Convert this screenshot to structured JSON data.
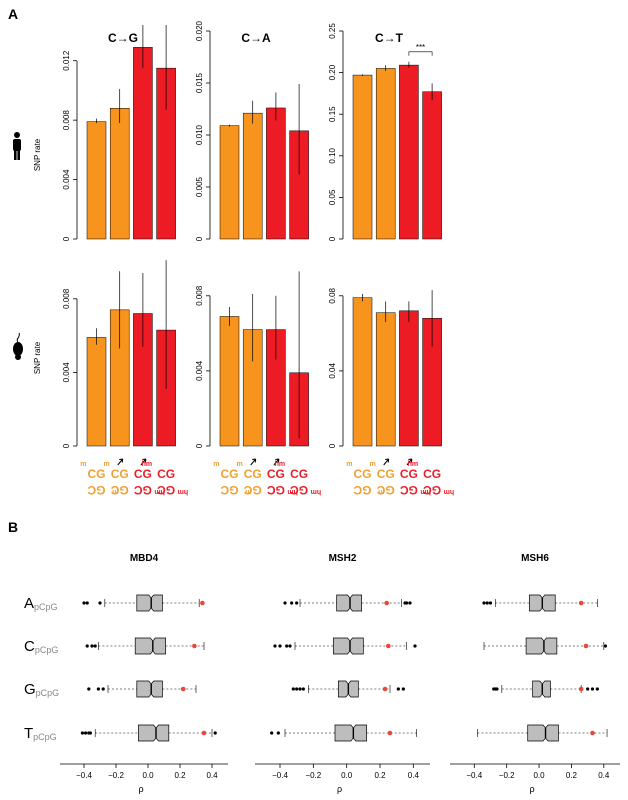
{
  "panel_labels": {
    "a": "A",
    "b": "B"
  },
  "colors": {
    "orange": "#F7941D",
    "red": "#ED1C24",
    "box": "#BDBDBD",
    "outlier": "#000000",
    "observed": "#E8473A"
  },
  "species": [
    {
      "ylabel": "SNP rate",
      "icon": "human-icon"
    },
    {
      "ylabel": "SNP rate",
      "icon": "mouse-icon"
    }
  ],
  "chart_data": [
    {
      "type": "bar",
      "title": "C→G",
      "row": "human",
      "ylim": [
        0,
        0.014
      ],
      "yticks": [
        "0",
        "0.004",
        "0.008",
        "0.012"
      ],
      "ytick_values": [
        0,
        0.004,
        0.008,
        0.012
      ],
      "values": [
        0.0079,
        0.0088,
        0.0129,
        0.0115
      ],
      "err_low": [
        0.0078,
        0.0078,
        0.0115,
        0.0087
      ],
      "err_high": [
        0.0081,
        0.0101,
        0.0144,
        0.0144
      ],
      "colors": [
        "#F7941D",
        "#F7941D",
        "#ED1C24",
        "#ED1C24"
      ]
    },
    {
      "type": "bar",
      "title": "C→A",
      "row": "human",
      "ylim": [
        0,
        0.02
      ],
      "yticks": [
        "0",
        "0.005",
        "0.010",
        "0.015",
        "0.020"
      ],
      "ytick_values": [
        0,
        0.005,
        0.01,
        0.015,
        0.02
      ],
      "values": [
        0.0109,
        0.0121,
        0.0126,
        0.0104
      ],
      "err_low": [
        0.0108,
        0.0111,
        0.0114,
        0.0062
      ],
      "err_high": [
        0.011,
        0.0133,
        0.0141,
        0.0149
      ],
      "colors": [
        "#F7941D",
        "#F7941D",
        "#ED1C24",
        "#ED1C24"
      ]
    },
    {
      "type": "bar",
      "title": "C→T",
      "row": "human",
      "ylim": [
        0,
        0.25
      ],
      "yticks": [
        "0",
        "0.05",
        "0.10",
        "0.15",
        "0.20",
        "0.25"
      ],
      "ytick_values": [
        0,
        0.05,
        0.1,
        0.15,
        0.2,
        0.25
      ],
      "values": [
        0.197,
        0.205,
        0.209,
        0.177
      ],
      "err_low": [
        0.196,
        0.202,
        0.206,
        0.167
      ],
      "err_high": [
        0.198,
        0.209,
        0.213,
        0.187
      ],
      "colors": [
        "#F7941D",
        "#F7941D",
        "#ED1C24",
        "#ED1C24"
      ],
      "annotation": "***"
    },
    {
      "type": "bar",
      "row": "mouse",
      "ylim": [
        0,
        0.01
      ],
      "yticks": [
        "0",
        "0.004",
        "0.008"
      ],
      "ytick_values": [
        0,
        0.004,
        0.008
      ],
      "values": [
        0.0059,
        0.0074,
        0.0072,
        0.0063
      ],
      "err_low": [
        0.0055,
        0.0053,
        0.0054,
        0.0031
      ],
      "err_high": [
        0.0064,
        0.0095,
        0.0094,
        0.0101
      ],
      "colors": [
        "#F7941D",
        "#F7941D",
        "#ED1C24",
        "#ED1C24"
      ]
    },
    {
      "type": "bar",
      "row": "mouse",
      "ylim": [
        0,
        0.0098
      ],
      "yticks": [
        "0",
        "0.004",
        "0.008"
      ],
      "ytick_values": [
        0,
        0.004,
        0.008
      ],
      "values": [
        0.0069,
        0.0062,
        0.0062,
        0.0039
      ],
      "err_low": [
        0.0064,
        0.0045,
        0.0046,
        0.0004
      ],
      "err_high": [
        0.0074,
        0.0081,
        0.008,
        0.0093
      ],
      "colors": [
        "#F7941D",
        "#F7941D",
        "#ED1C24",
        "#ED1C24"
      ]
    },
    {
      "type": "bar",
      "row": "mouse",
      "ylim": [
        0,
        0.098
      ],
      "yticks": [
        "0",
        "0.04",
        "0.08"
      ],
      "ytick_values": [
        0,
        0.04,
        0.08
      ],
      "values": [
        0.079,
        0.071,
        0.072,
        0.068
      ],
      "err_low": [
        0.077,
        0.066,
        0.066,
        0.053
      ],
      "err_high": [
        0.081,
        0.077,
        0.077,
        0.083
      ],
      "colors": [
        "#F7941D",
        "#F7941D",
        "#ED1C24",
        "#ED1C24"
      ]
    },
    {
      "type": "boxplot",
      "title": "MBD4",
      "xlabel": "ρ",
      "xlim": [
        -0.55,
        0.5
      ],
      "xticks": [
        "−0.4",
        "−0.2",
        "0.0",
        "0.2",
        "0.4"
      ],
      "xtick_values": [
        -0.4,
        -0.2,
        0.0,
        0.2,
        0.4
      ],
      "rows": [
        {
          "base": "A",
          "sub": "pCpG",
          "whisker": [
            -0.27,
            0.32
          ],
          "q1": -0.07,
          "median": 0.02,
          "q3": 0.09,
          "outliers": [
            -0.4,
            -0.38,
            -0.3
          ],
          "observed": 0.34
        },
        {
          "base": "C",
          "sub": "pCpG",
          "whisker": [
            -0.31,
            0.35
          ],
          "q1": -0.08,
          "median": 0.03,
          "q3": 0.11,
          "outliers": [
            -0.38,
            -0.35,
            -0.33
          ],
          "observed": 0.29
        },
        {
          "base": "G",
          "sub": "pCpG",
          "whisker": [
            -0.25,
            0.3
          ],
          "q1": -0.07,
          "median": 0.02,
          "q3": 0.09,
          "outliers": [
            -0.37,
            -0.31,
            -0.28
          ],
          "observed": 0.22
        },
        {
          "base": "T",
          "sub": "pCpG",
          "whisker": [
            -0.33,
            0.4
          ],
          "q1": -0.06,
          "median": 0.05,
          "q3": 0.13,
          "outliers": [
            -0.41,
            -0.39,
            -0.37,
            -0.36,
            0.42
          ],
          "observed": 0.35
        }
      ]
    },
    {
      "type": "boxplot",
      "title": "MSH2",
      "xlabel": "ρ",
      "xlim": [
        -0.55,
        0.5
      ],
      "xticks": [
        "−0.4",
        "−0.2",
        "0.0",
        "0.2",
        "0.4"
      ],
      "xtick_values": [
        -0.4,
        -0.2,
        0.0,
        0.2,
        0.4
      ],
      "rows": [
        {
          "base": "A",
          "sub": "pCpG",
          "whisker": [
            -0.28,
            0.33
          ],
          "q1": -0.06,
          "median": 0.02,
          "q3": 0.09,
          "outliers": [
            -0.37,
            -0.33,
            -0.3,
            0.35,
            0.36,
            0.38
          ],
          "observed": 0.24
        },
        {
          "base": "C",
          "sub": "pCpG",
          "whisker": [
            -0.31,
            0.36
          ],
          "q1": -0.08,
          "median": 0.02,
          "q3": 0.1,
          "outliers": [
            -0.43,
            -0.4,
            -0.36,
            -0.34,
            0.41
          ],
          "observed": 0.25
        },
        {
          "base": "G",
          "sub": "pCpG",
          "whisker": [
            -0.23,
            0.26
          ],
          "q1": -0.05,
          "median": 0.01,
          "q3": 0.07,
          "outliers": [
            -0.32,
            -0.3,
            -0.28,
            -0.26,
            0.31,
            0.34
          ],
          "observed": 0.23
        },
        {
          "base": "T",
          "sub": "pCpG",
          "whisker": [
            -0.37,
            0.42
          ],
          "q1": -0.07,
          "median": 0.04,
          "q3": 0.12,
          "outliers": [
            -0.45,
            -0.41
          ],
          "observed": 0.26
        }
      ]
    },
    {
      "type": "boxplot",
      "title": "MSH6",
      "xlabel": "ρ",
      "xlim": [
        -0.55,
        0.5
      ],
      "xticks": [
        "−0.4",
        "−0.2",
        "0.0",
        "0.2",
        "0.4"
      ],
      "xtick_values": [
        -0.4,
        -0.2,
        0.0,
        0.2,
        0.4
      ],
      "rows": [
        {
          "base": "A",
          "sub": "pCpG",
          "whisker": [
            -0.27,
            0.36
          ],
          "q1": -0.06,
          "median": 0.02,
          "q3": 0.1,
          "outliers": [
            -0.34,
            -0.32,
            -0.3
          ],
          "observed": 0.26
        },
        {
          "base": "C",
          "sub": "pCpG",
          "whisker": [
            -0.34,
            0.4
          ],
          "q1": -0.08,
          "median": 0.03,
          "q3": 0.11,
          "outliers": [
            0.41
          ],
          "observed": 0.29
        },
        {
          "base": "G",
          "sub": "pCpG",
          "whisker": [
            -0.23,
            0.26
          ],
          "q1": -0.04,
          "median": 0.02,
          "q3": 0.07,
          "outliers": [
            -0.28,
            -0.27,
            -0.26,
            0.3,
            0.33,
            0.36
          ],
          "observed": 0.26
        },
        {
          "base": "T",
          "sub": "pCpG",
          "whisker": [
            -0.38,
            0.42
          ],
          "q1": -0.07,
          "median": 0.04,
          "q3": 0.12,
          "outliers": [],
          "observed": 0.33
        }
      ]
    }
  ],
  "motif_labels": [
    {
      "mod": "m",
      "top": "CG",
      "bottom": "GC",
      "bottom_mod": "m",
      "color": "#F0A030",
      "arrow": false
    },
    {
      "mod": "m",
      "top": "CG",
      "bottom": "GC",
      "bottom_mod": "",
      "color": "#F0A030",
      "arrow": true
    },
    {
      "mod": "",
      "top": "CG",
      "bottom": "GC",
      "bottom_mod": "hm",
      "color": "#E8202A",
      "arrow": true
    },
    {
      "mod": "hm",
      "top": "CG",
      "bottom": "GC",
      "bottom_mod": "hm",
      "color": "#E8202A",
      "arrow": false
    }
  ]
}
